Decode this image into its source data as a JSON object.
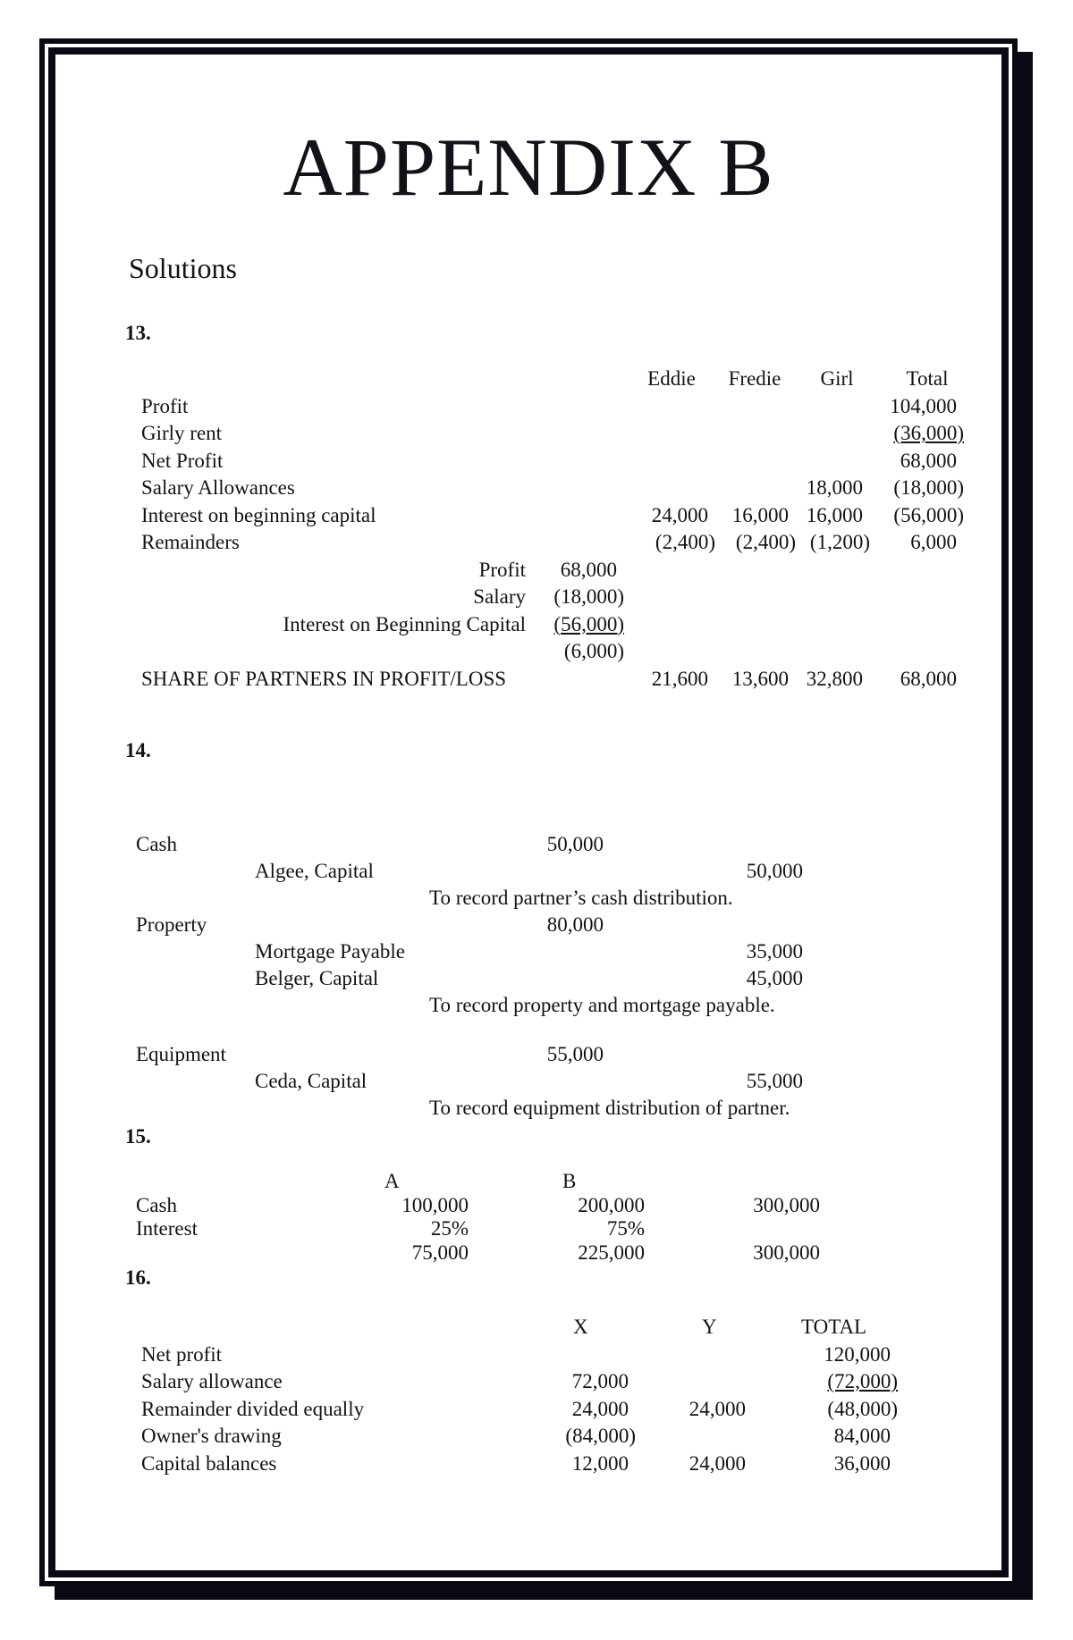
{
  "title": "APPENDIX B",
  "subtitle": "Solutions",
  "colors": {
    "ink": "#0a0a14",
    "paper": "#ffffff"
  },
  "sections": {
    "s13": {
      "number": "13.",
      "headers": [
        "Eddie",
        "Fredie",
        "Girl",
        "Total"
      ],
      "rows": [
        {
          "label": "Profit",
          "total": "104,000"
        },
        {
          "label": "Girly rent",
          "total": "(36,000)",
          "total_u": true
        },
        {
          "label": "Net Profit",
          "total": "68,000"
        },
        {
          "label": "Salary Allowances",
          "girl": "18,000",
          "total": "(18,000)"
        },
        {
          "label": "Interest on beginning capital",
          "eddie": "24,000",
          "fredie": "16,000",
          "girl": "16,000",
          "total": "(56,000)"
        },
        {
          "label": "Remainders",
          "eddie": "(2,400)",
          "fredie": "(2,400)",
          "girl": "(1,200)",
          "total": "6,000"
        },
        {
          "sub_label": "Profit",
          "sub_amount": "68,000"
        },
        {
          "sub_label": "Salary",
          "sub_amount": "(18,000)"
        },
        {
          "sub_label": "Interest on Beginning Capital",
          "sub_amount": "(56,000)",
          "sub_u": true
        },
        {
          "sub_amount": "(6,000)"
        },
        {
          "label": "SHARE OF PARTNERS IN PROFIT/LOSS",
          "eddie": "21,600",
          "fredie": "13,600",
          "girl": "32,800",
          "total": "68,000"
        }
      ]
    },
    "s14": {
      "number": "14.",
      "entries": [
        {
          "rows": [
            {
              "account": "Cash",
              "debit": "50,000",
              "credit": ""
            },
            {
              "account": "Algee, Capital",
              "debit": "",
              "credit": "50,000"
            }
          ],
          "note": "To record partner’s cash distribution."
        },
        {
          "rows": [
            {
              "account": "Property",
              "debit": "80,000",
              "credit": ""
            },
            {
              "account": "Mortgage Payable",
              "debit": "",
              "credit": "35,000"
            },
            {
              "account": "Belger, Capital",
              "debit": "",
              "credit": "45,000"
            }
          ],
          "note": "To record property and mortgage payable."
        },
        {
          "rows": [
            {
              "account": "Equipment",
              "debit": "55,000",
              "credit": ""
            },
            {
              "account": "Ceda, Capital",
              "debit": "",
              "credit": "55,000"
            }
          ],
          "note": "To record equipment distribution of partner."
        }
      ]
    },
    "s15": {
      "number": "15.",
      "headers": [
        "A",
        "B"
      ],
      "rows": [
        {
          "label": "Cash",
          "a": "100,000",
          "b": "200,000",
          "total": "300,000"
        },
        {
          "label": "Interest",
          "a": "25%",
          "b": "75%",
          "total": ""
        },
        {
          "label": "",
          "a": "75,000",
          "b": "225,000",
          "total": "300,000"
        }
      ]
    },
    "s16": {
      "number": "16.",
      "headers": [
        "X",
        "Y",
        "TOTAL"
      ],
      "rows": [
        {
          "label": "Net profit",
          "total": "120,000"
        },
        {
          "label": "Salary allowance",
          "x": "72,000",
          "total": "(72,000)",
          "total_u": true
        },
        {
          "label": "Remainder divided equally",
          "x": "24,000",
          "y": "24,000",
          "total": "(48,000)"
        },
        {
          "label": "Owner's drawing",
          "x": "(84,000)",
          "total": "84,000"
        },
        {
          "label": "Capital balances",
          "x": "12,000",
          "y": "24,000",
          "total": "36,000"
        }
      ]
    }
  }
}
